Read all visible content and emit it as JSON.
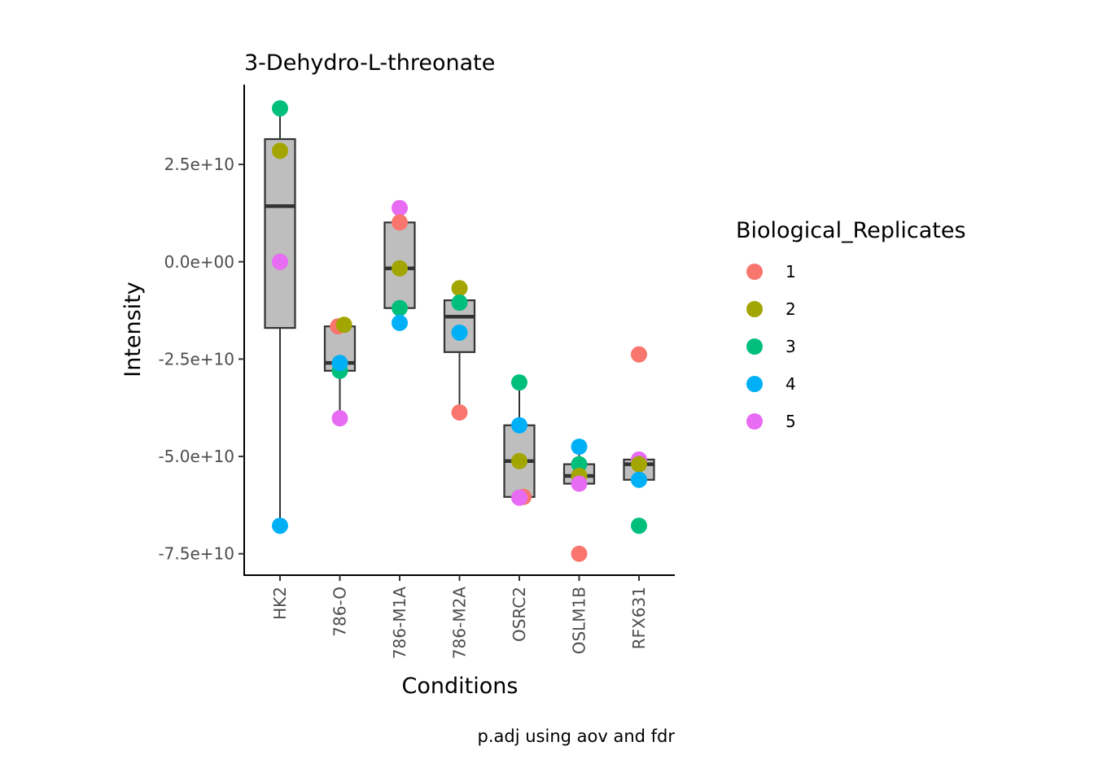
{
  "chart_data": {
    "type": "box",
    "title": "3-Dehydro-L-threonate",
    "xlabel": "Conditions",
    "ylabel": "Intensity",
    "caption": "p.adj using  aov and fdr",
    "categories": [
      "HK2",
      "786-O",
      "786-M1A",
      "786-M2A",
      "OSRC2",
      "OSLM1B",
      "RFX631"
    ],
    "yticks": [
      {
        "value": 25000000000,
        "label": "2.5e+10"
      },
      {
        "value": 0,
        "label": "0.0e+00"
      },
      {
        "value": -25000000000,
        "label": "-2.5e+10"
      },
      {
        "value": -50000000000,
        "label": "-5.0e+10"
      },
      {
        "value": -75000000000,
        "label": "-7.5e+10"
      }
    ],
    "ylim": [
      -80500000000,
      45500000000
    ],
    "boxes": [
      {
        "category": "HK2",
        "whisker_low": -67800000000,
        "q1": -17000000000,
        "median": 14300000000,
        "q3": 31500000000,
        "whisker_high": 39400000000
      },
      {
        "category": "786-O",
        "whisker_low": -40200000000,
        "q1": -28000000000,
        "median": -26000000000,
        "q3": -16600000000,
        "whisker_high": -16000000000
      },
      {
        "category": "786-M1A",
        "whisker_low": -15700000000,
        "q1": -11900000000,
        "median": -1700000000,
        "q3": 10100000000,
        "whisker_high": 13800000000
      },
      {
        "category": "786-M2A",
        "whisker_low": -38700000000,
        "q1": -23200000000,
        "median": -14100000000,
        "q3": -9900000000,
        "whisker_high": -6800000000
      },
      {
        "category": "OSRC2",
        "whisker_low": -60600000000,
        "q1": -60400000000,
        "median": -51200000000,
        "q3": -42000000000,
        "whisker_high": -31000000000
      },
      {
        "category": "OSLM1B",
        "whisker_low": -57000000000,
        "q1": -57000000000,
        "median": -55000000000,
        "q3": -52000000000,
        "whisker_high": -47500000000
      },
      {
        "category": "RFX631",
        "whisker_low": -56000000000,
        "q1": -56000000000,
        "median": -52000000000,
        "q3": -50800000000,
        "whisker_high": -50800000000
      }
    ],
    "legend": {
      "title": "Biological_Replicates",
      "placement": "right",
      "entries": [
        {
          "label": "1",
          "color": "#F8766D"
        },
        {
          "label": "2",
          "color": "#A3A500"
        },
        {
          "label": "3",
          "color": "#00BF7D"
        },
        {
          "label": "4",
          "color": "#00B0F6"
        },
        {
          "label": "5",
          "color": "#E76BF3"
        }
      ]
    },
    "points": [
      {
        "category": "HK2",
        "replicate": "3",
        "y": 39400000000,
        "jitter": 0.0
      },
      {
        "category": "HK2",
        "replicate": "2",
        "y": 28500000000,
        "jitter": 0.0
      },
      {
        "category": "HK2",
        "replicate": "5",
        "y": 0,
        "jitter": 0.0
      },
      {
        "category": "HK2",
        "replicate": "4",
        "y": -67800000000,
        "jitter": 0.0
      },
      {
        "category": "786-O",
        "replicate": "1",
        "y": -16600000000,
        "jitter": -0.03
      },
      {
        "category": "786-O",
        "replicate": "2",
        "y": -16200000000,
        "jitter": 0.07
      },
      {
        "category": "786-O",
        "replicate": "3",
        "y": -28000000000,
        "jitter": 0.0
      },
      {
        "category": "786-O",
        "replicate": "4",
        "y": -26000000000,
        "jitter": 0.0
      },
      {
        "category": "786-O",
        "replicate": "5",
        "y": -40200000000,
        "jitter": 0.0
      },
      {
        "category": "786-M1A",
        "replicate": "5",
        "y": 13800000000,
        "jitter": 0.0
      },
      {
        "category": "786-M1A",
        "replicate": "1",
        "y": 10100000000,
        "jitter": 0.0
      },
      {
        "category": "786-M1A",
        "replicate": "2",
        "y": -1700000000,
        "jitter": 0.0
      },
      {
        "category": "786-M1A",
        "replicate": "3",
        "y": -11900000000,
        "jitter": 0.0
      },
      {
        "category": "786-M1A",
        "replicate": "4",
        "y": -15700000000,
        "jitter": 0.0
      },
      {
        "category": "786-M2A",
        "replicate": "2",
        "y": -6800000000,
        "jitter": 0.0
      },
      {
        "category": "786-M2A",
        "replicate": "3",
        "y": -10500000000,
        "jitter": 0.0
      },
      {
        "category": "786-M2A",
        "replicate": "4",
        "y": -18200000000,
        "jitter": 0.0
      },
      {
        "category": "786-M2A",
        "replicate": "1",
        "y": -38700000000,
        "jitter": 0.0
      },
      {
        "category": "OSRC2",
        "replicate": "3",
        "y": -31000000000,
        "jitter": 0.0
      },
      {
        "category": "OSRC2",
        "replicate": "4",
        "y": -42000000000,
        "jitter": 0.0
      },
      {
        "category": "OSRC2",
        "replicate": "2",
        "y": -51200000000,
        "jitter": 0.0
      },
      {
        "category": "OSRC2",
        "replicate": "1",
        "y": -60400000000,
        "jitter": 0.07
      },
      {
        "category": "OSRC2",
        "replicate": "5",
        "y": -60600000000,
        "jitter": 0.0
      },
      {
        "category": "OSLM1B",
        "replicate": "4",
        "y": -47500000000,
        "jitter": 0.0
      },
      {
        "category": "OSLM1B",
        "replicate": "3",
        "y": -52000000000,
        "jitter": 0.0
      },
      {
        "category": "OSLM1B",
        "replicate": "2",
        "y": -55000000000,
        "jitter": 0.0
      },
      {
        "category": "OSLM1B",
        "replicate": "5",
        "y": -57000000000,
        "jitter": 0.0
      },
      {
        "category": "OSLM1B",
        "replicate": "1",
        "y": -75000000000,
        "jitter": 0.0
      },
      {
        "category": "RFX631",
        "replicate": "1",
        "y": -23800000000,
        "jitter": 0.0
      },
      {
        "category": "RFX631",
        "replicate": "5",
        "y": -50800000000,
        "jitter": 0.0
      },
      {
        "category": "RFX631",
        "replicate": "2",
        "y": -52000000000,
        "jitter": 0.0
      },
      {
        "category": "RFX631",
        "replicate": "4",
        "y": -56000000000,
        "jitter": 0.0
      },
      {
        "category": "RFX631",
        "replicate": "3",
        "y": -67800000000,
        "jitter": 0.0
      }
    ],
    "box_fill": "#bebebe",
    "box_stroke": "#333333",
    "grid": false
  }
}
